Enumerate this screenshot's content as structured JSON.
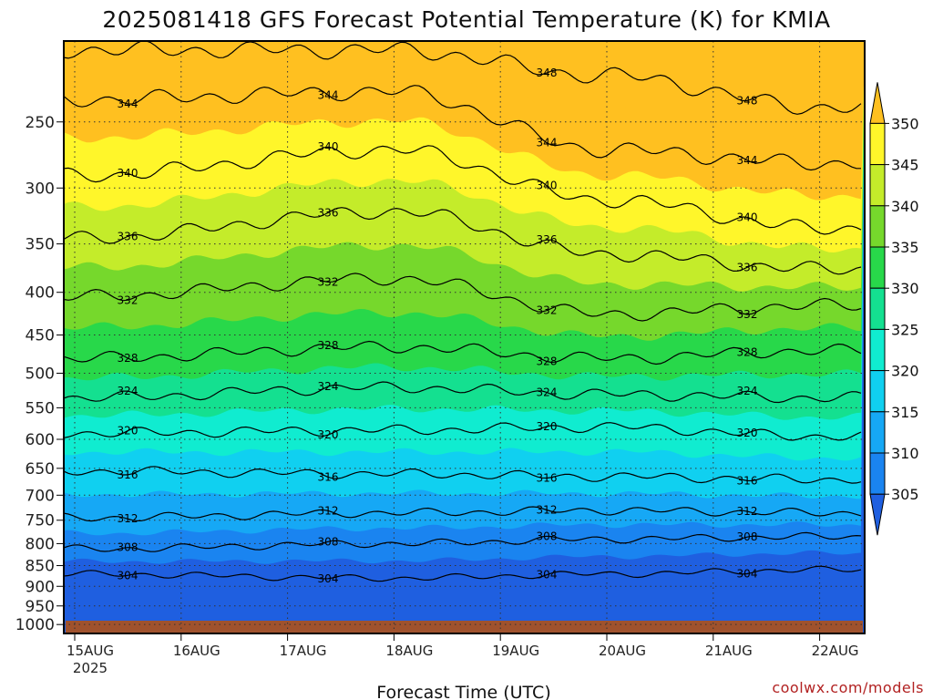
{
  "chart_data": {
    "type": "heatmap",
    "title": "2025081418 GFS Forecast Potential Temperature (K) for KMIA",
    "xlabel": "Forecast Time (UTC)",
    "ylabel": "",
    "x_ticks": [
      "15AUG",
      "16AUG",
      "17AUG",
      "18AUG",
      "19AUG",
      "20AUG",
      "21AUG",
      "22AUG"
    ],
    "x_tick_year": "2025",
    "y_ticks": [
      250,
      300,
      350,
      400,
      450,
      500,
      550,
      600,
      650,
      700,
      750,
      800,
      850,
      900,
      950,
      1000
    ],
    "y_range_hpa": [
      1025,
      200
    ],
    "y_scale": "log",
    "grid": true,
    "colorbar": {
      "labels": [
        "305",
        "310",
        "315",
        "320",
        "325",
        "330",
        "335",
        "340",
        "345",
        "350"
      ],
      "colors": [
        "#1f5fe0",
        "#1a84f0",
        "#16a8f5",
        "#10d0f0",
        "#10ecd0",
        "#14e090",
        "#28d84a",
        "#76d82c",
        "#c4ec2a",
        "#fff62a",
        "#ffc020"
      ]
    },
    "contour_interval_k": 4,
    "contour_labels": [
      "304",
      "308",
      "312",
      "316",
      "320",
      "324",
      "328",
      "332",
      "336",
      "340",
      "344",
      "348"
    ],
    "series": [
      {
        "name": "304",
        "values": [
          {
            "day": "15AUG",
            "hpa": 870
          },
          {
            "day": "18AUG",
            "hpa": 880
          },
          {
            "day": "20AUG",
            "hpa": 870
          },
          {
            "day": "22AUG",
            "hpa": 860
          }
        ]
      },
      {
        "name": "308",
        "values": [
          {
            "day": "15AUG",
            "hpa": 812
          },
          {
            "day": "18AUG",
            "hpa": 800
          },
          {
            "day": "20AUG",
            "hpa": 790
          },
          {
            "day": "22AUG",
            "hpa": 785
          }
        ]
      },
      {
        "name": "312",
        "values": [
          {
            "day": "15AUG",
            "hpa": 745
          },
          {
            "day": "18AUG",
            "hpa": 735
          },
          {
            "day": "20AUG",
            "hpa": 730
          },
          {
            "day": "22AUG",
            "hpa": 735
          }
        ]
      },
      {
        "name": "316",
        "values": [
          {
            "day": "15AUG",
            "hpa": 655
          },
          {
            "day": "18AUG",
            "hpa": 660
          },
          {
            "day": "20AUG",
            "hpa": 665
          },
          {
            "day": "22AUG",
            "hpa": 670
          }
        ]
      },
      {
        "name": "320",
        "values": [
          {
            "day": "15AUG",
            "hpa": 590
          },
          {
            "day": "18AUG",
            "hpa": 585
          },
          {
            "day": "20AUG",
            "hpa": 580
          },
          {
            "day": "22AUG",
            "hpa": 595
          }
        ]
      },
      {
        "name": "324",
        "values": [
          {
            "day": "15AUG",
            "hpa": 535
          },
          {
            "day": "18AUG",
            "hpa": 520
          },
          {
            "day": "20AUG",
            "hpa": 530
          },
          {
            "day": "22AUG",
            "hpa": 535
          }
        ]
      },
      {
        "name": "328",
        "values": [
          {
            "day": "15AUG",
            "hpa": 480
          },
          {
            "day": "18AUG",
            "hpa": 465
          },
          {
            "day": "20AUG",
            "hpa": 480
          },
          {
            "day": "22AUG",
            "hpa": 470
          }
        ]
      },
      {
        "name": "332",
        "values": [
          {
            "day": "15AUG",
            "hpa": 405
          },
          {
            "day": "18AUG",
            "hpa": 385
          },
          {
            "day": "20AUG",
            "hpa": 425
          },
          {
            "day": "22AUG",
            "hpa": 415
          }
        ]
      },
      {
        "name": "336",
        "values": [
          {
            "day": "15AUG",
            "hpa": 345
          },
          {
            "day": "18AUG",
            "hpa": 320
          },
          {
            "day": "20AUG",
            "hpa": 360
          },
          {
            "day": "22AUG",
            "hpa": 375
          }
        ]
      },
      {
        "name": "340",
        "values": [
          {
            "day": "15AUG",
            "hpa": 290
          },
          {
            "day": "18AUG",
            "hpa": 270
          },
          {
            "day": "20AUG",
            "hpa": 310
          },
          {
            "day": "22AUG",
            "hpa": 335
          }
        ]
      },
      {
        "name": "344",
        "values": [
          {
            "day": "15AUG",
            "hpa": 235
          },
          {
            "day": "18AUG",
            "hpa": 230
          },
          {
            "day": "20AUG",
            "hpa": 270
          },
          {
            "day": "22AUG",
            "hpa": 280
          }
        ]
      },
      {
        "name": "348",
        "values": [
          {
            "day": "18AUG",
            "hpa": 205
          },
          {
            "day": "20AUG",
            "hpa": 220
          },
          {
            "day": "22AUG",
            "hpa": 240
          }
        ]
      }
    ]
  },
  "credit": "coolwx.com/models"
}
